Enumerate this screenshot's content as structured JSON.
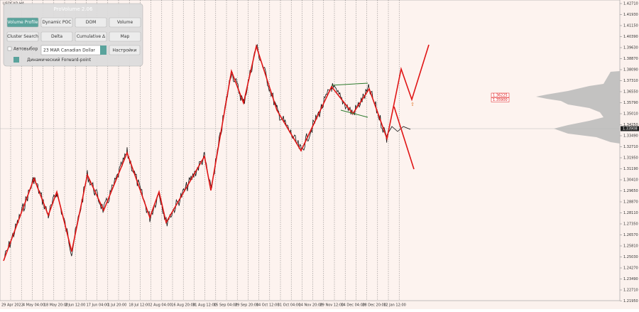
{
  "symbol": "USDCAD,H4",
  "panel": {
    "title": "ProVolume 2.06",
    "buttons": [
      "Volume Profile",
      "Dynamic POC",
      "DOM",
      "Volume",
      "Cluster Search",
      "Delta",
      "Cumulative Δ",
      "Map"
    ],
    "auto_select": "Автовыбор",
    "instrument": "23 MAR Canadian Dollar",
    "settings": "Настройки",
    "forward_point": "Динамический Forward-point"
  },
  "price_axis": [
    "1.42710",
    "1.41930",
    "1.41150",
    "1.40390",
    "1.39630",
    "1.38870",
    "1.38090",
    "1.37310",
    "1.36550",
    "1.35790",
    "1.35010",
    "1.34250",
    "1.33490",
    "1.32710",
    "1.31950",
    "1.31190",
    "1.30410",
    "1.29650",
    "1.28870",
    "1.28110",
    "1.27350",
    "1.26570",
    "1.25810",
    "1.25030",
    "1.24270",
    "1.23490",
    "1.22710",
    "1.21950"
  ],
  "current_price": "1.33908",
  "level_labels": [
    "1.36225",
    "1.35900"
  ],
  "time_axis": [
    "29 Apr 2022",
    "4 May 04:00",
    "18 May 20:00",
    "2 Jun 12:00",
    "17 Jun 04:00",
    "1 Jul 20:00",
    "18 Jul 12:00",
    "2 Aug 04:00",
    "16 Aug 20:00",
    "31 Aug 12:00",
    "15 Sep 04:00",
    "29 Sep 20:00",
    "14 Oct 12:00",
    "31 Oct 04:00",
    "14 Nov 20:00",
    "29 Nov 12:00",
    "14 Dec 04:00",
    "28 Dec 20:00",
    "12 Jan 12:00"
  ]
}
